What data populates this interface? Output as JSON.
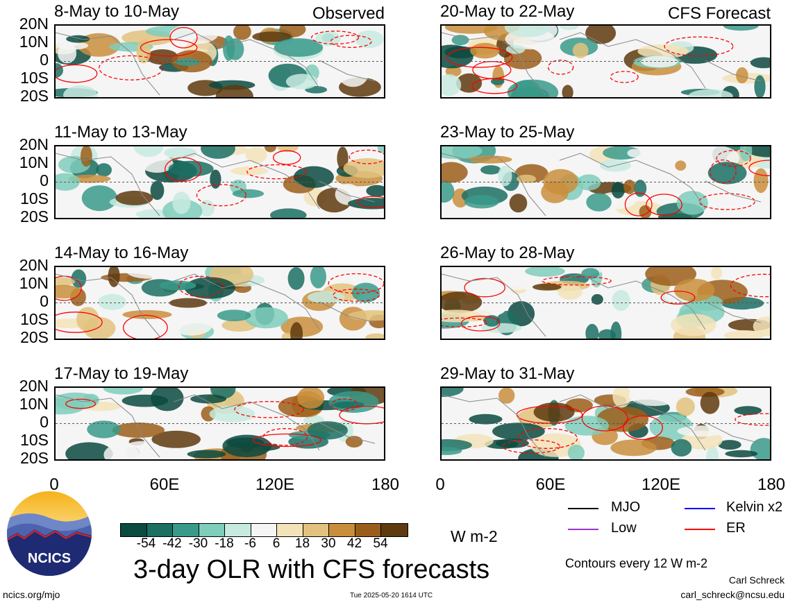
{
  "panels_left": [
    {
      "title": "8-May to 10-May",
      "tag": "Observed"
    },
    {
      "title": "11-May to 13-May",
      "tag": ""
    },
    {
      "title": "14-May to 16-May",
      "tag": ""
    },
    {
      "title": "17-May to 19-May",
      "tag": ""
    }
  ],
  "panels_right": [
    {
      "title": "20-May to 22-May",
      "tag": "CFS Forecast"
    },
    {
      "title": "23-May to 25-May",
      "tag": ""
    },
    {
      "title": "26-May to 28-May",
      "tag": ""
    },
    {
      "title": "29-May to 31-May",
      "tag": ""
    }
  ],
  "lat_labels": [
    "20N",
    "10N",
    "0",
    "10S",
    "20S"
  ],
  "lon_labels": [
    "0",
    "60E",
    "120E",
    "180"
  ],
  "colorbar": {
    "labels": [
      "-54",
      "-42",
      "-30",
      "-18",
      "-6",
      "6",
      "18",
      "30",
      "42",
      "54"
    ],
    "colors": [
      "#0b4a3f",
      "#1b6f63",
      "#3a9a8a",
      "#7fcdbb",
      "#c7eae0",
      "#f5f5f5",
      "#f3e3b8",
      "#e2c27e",
      "#c98e3c",
      "#9b5e1a",
      "#5e3a0e"
    ],
    "units": "W m-2"
  },
  "legend": {
    "mjo": "MJO",
    "kelvin": "Kelvin x2",
    "low": "Low",
    "er": "ER",
    "colors": {
      "mjo": "#000000",
      "kelvin": "#0000ff",
      "low": "#9933cc",
      "er": "#ff0000"
    },
    "contour_note": "Contours every 12 W m-2",
    "author": "Carl Schreck",
    "email": "carl_schreck@ncsu.edu"
  },
  "main_title": "3-day OLR with CFS forecasts",
  "url": "ncics.org/mjo",
  "timestamp": "Tue 2025-05-20 1614 UTC",
  "logo_text": "NCICS"
}
